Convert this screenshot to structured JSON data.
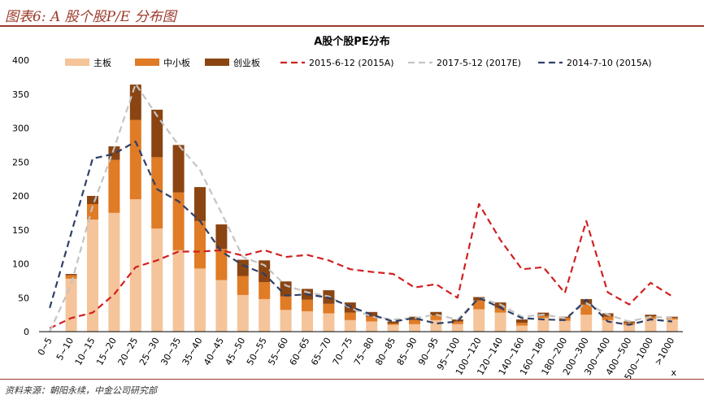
{
  "header": {
    "title": "图表6: A 股个股P/E 分布图"
  },
  "footer": {
    "source": "资料来源：朝阳永续，中金公司研究部"
  },
  "colors": {
    "main_board": "#f5c49a",
    "sme_board": "#e07b26",
    "chinext_board": "#8b4512",
    "line_2015_6_12": "#d12020",
    "line_2017_5_12": "#c4c4c4",
    "line_2014_7_10": "#2f3f66",
    "accent": "#9b3a2a"
  },
  "chart_data": {
    "type": "bar",
    "stacked": true,
    "title": "A股个股PE分布",
    "xlabel": "x",
    "ylabel": "",
    "ylim": [
      0,
      400
    ],
    "yticks": [
      0,
      50,
      100,
      150,
      200,
      250,
      300,
      350,
      400
    ],
    "categories": [
      "0~5",
      "5~10",
      "10~15",
      "15~20",
      "20~25",
      "25~30",
      "30~35",
      "35~40",
      "40~45",
      "45~50",
      "50~55",
      "55~60",
      "60~65",
      "65~70",
      "70~75",
      "75~80",
      "80~85",
      "85~90",
      "90~95",
      "95~100",
      "100~120",
      "120~140",
      "140~160",
      "160~180",
      "180~200",
      "200~300",
      "300~400",
      "400~500",
      "500~1000",
      ">1000"
    ],
    "series": [
      {
        "name": "主板",
        "kind": "bar",
        "color": "#f5c49a",
        "values": [
          0,
          78,
          165,
          175,
          195,
          152,
          120,
          93,
          76,
          54,
          48,
          32,
          30,
          27,
          17,
          15,
          10,
          11,
          17,
          11,
          33,
          28,
          9,
          20,
          16,
          25,
          17,
          10,
          19,
          18
        ]
      },
      {
        "name": "中小板",
        "kind": "bar",
        "color": "#e07b26",
        "values": [
          0,
          5,
          23,
          78,
          117,
          105,
          85,
          70,
          46,
          28,
          25,
          20,
          17,
          14,
          11,
          7,
          2,
          6,
          7,
          4,
          13,
          7,
          4,
          3,
          4,
          15,
          5,
          3,
          3,
          2
        ]
      },
      {
        "name": "创业板",
        "kind": "bar",
        "color": "#8b4512",
        "values": [
          0,
          2,
          12,
          20,
          52,
          70,
          70,
          50,
          36,
          24,
          32,
          22,
          16,
          20,
          15,
          7,
          3,
          5,
          5,
          3,
          5,
          8,
          5,
          5,
          2,
          8,
          5,
          2,
          3,
          2
        ]
      },
      {
        "name": "2015-6-12 (2015A)",
        "kind": "line",
        "color": "#d12020",
        "values": [
          5,
          20,
          28,
          55,
          95,
          105,
          118,
          118,
          120,
          112,
          120,
          110,
          113,
          105,
          92,
          88,
          85,
          65,
          70,
          50,
          188,
          135,
          92,
          95,
          57,
          163,
          58,
          40,
          72,
          52
        ]
      },
      {
        "name": "2017-5-12 (2017E)",
        "kind": "line",
        "color": "#c4c4c4",
        "values": [
          0,
          70,
          185,
          270,
          365,
          318,
          275,
          238,
          175,
          110,
          98,
          68,
          58,
          52,
          35,
          22,
          18,
          20,
          25,
          18,
          50,
          40,
          22,
          25,
          20,
          42,
          25,
          15,
          22,
          20
        ]
      },
      {
        "name": "2014-7-10 (2015A)",
        "kind": "line",
        "color": "#2f3f66",
        "values": [
          35,
          145,
          255,
          262,
          280,
          210,
          192,
          163,
          118,
          98,
          85,
          53,
          55,
          50,
          37,
          25,
          15,
          20,
          12,
          15,
          50,
          35,
          20,
          18,
          17,
          47,
          15,
          10,
          18,
          15
        ]
      }
    ],
    "legend_position": "top"
  }
}
